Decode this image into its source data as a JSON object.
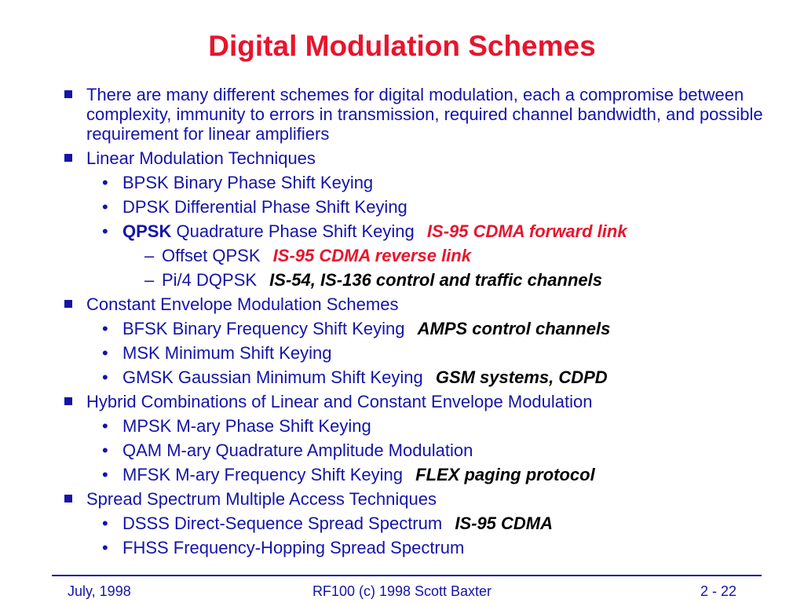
{
  "title": "Digital Modulation Schemes",
  "items": {
    "i0": "There are many different schemes for digital modulation, each a compromise between complexity, immunity to errors in transmission, required channel bandwidth, and possible requirement for linear amplifiers",
    "i1": "Linear Modulation Techniques",
    "i1a": "BPSK Binary Phase Shift Keying",
    "i1b": "DPSK Differential Phase Shift Keying",
    "i1c_bold": "QPSK",
    "i1c": "Quadrature Phase Shift Keying",
    "i1c_note": "IS-95 CDMA forward link",
    "i1c1": "Offset QPSK",
    "i1c1_note": "IS-95 CDMA reverse link",
    "i1c2": "Pi/4 DQPSK",
    "i1c2_note": "IS-54, IS-136 control and traffic channels",
    "i2": "Constant Envelope Modulation Schemes",
    "i2a": "BFSK Binary Frequency Shift Keying",
    "i2a_note": "AMPS control channels",
    "i2b": "MSK Minimum Shift Keying",
    "i2c": "GMSK Gaussian Minimum Shift Keying",
    "i2c_note": "GSM systems,  CDPD",
    "i3": "Hybrid Combinations of Linear and Constant Envelope Modulation",
    "i3a": "MPSK M-ary Phase Shift Keying",
    "i3b": "QAM  M-ary Quadrature Amplitude Modulation",
    "i3c": "MFSK M-ary Frequency Shift Keying",
    "i3c_note": "FLEX paging protocol",
    "i4": "Spread Spectrum Multiple Access Techniques",
    "i4a": "DSSS Direct-Sequence Spread Spectrum",
    "i4a_note": "IS-95 CDMA",
    "i4b": "FHSS  Frequency-Hopping Spread Spectrum"
  },
  "footer": {
    "left": "July, 1998",
    "center": "RF100 (c) 1998 Scott Baxter",
    "right": "2 - 22"
  },
  "colors": {
    "title": "#e8142d",
    "body_text": "#1414a8",
    "accent_note": "#e8142d",
    "note_black": "#000000"
  }
}
